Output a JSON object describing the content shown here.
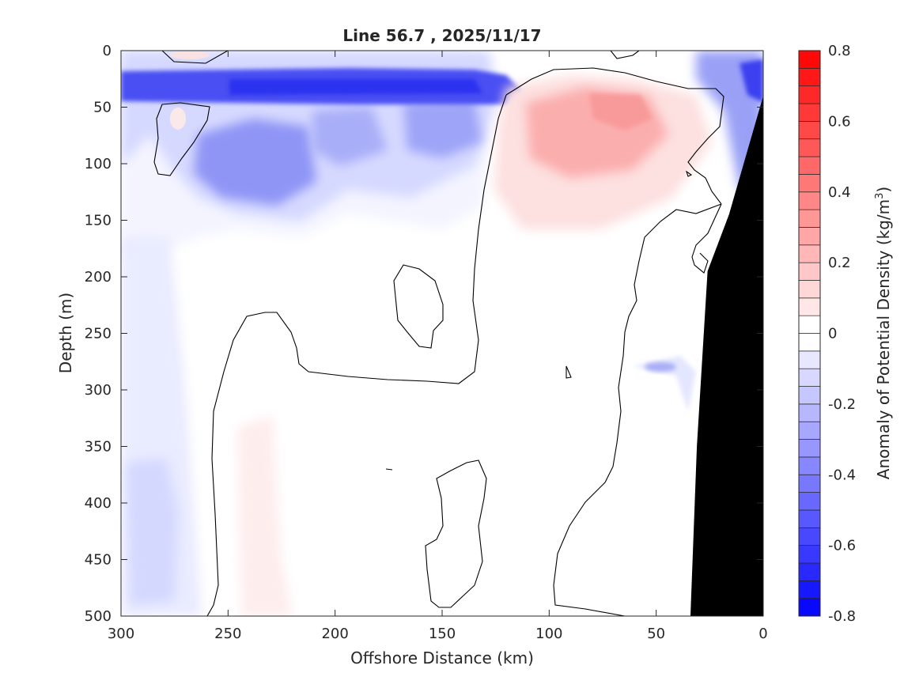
{
  "chart_data": {
    "type": "heatmap",
    "title": "Line 56.7 , 2025/11/17",
    "xlabel": "Offshore Distance (km)",
    "ylabel": "Depth (m)",
    "xlim": [
      300,
      0
    ],
    "ylim": [
      0,
      500
    ],
    "x_direction": "reversed",
    "y_direction": "reversed",
    "x_ticks": [
      300,
      250,
      200,
      150,
      100,
      50,
      0
    ],
    "y_ticks": [
      0,
      50,
      100,
      150,
      200,
      250,
      300,
      350,
      400,
      450,
      500
    ],
    "colorbar": {
      "label_prefix": "Anomaly of Potential Density (kg/m",
      "label_sup": "3",
      "label_suffix": ")",
      "range": [
        -0.8,
        0.8
      ],
      "step": 0.05,
      "ticks": [
        0.8,
        0.6,
        0.4,
        0.2,
        0,
        -0.2,
        -0.4,
        -0.6,
        -0.8
      ],
      "tick_labels": [
        "0.8",
        "0.6",
        "0.4",
        "0.2",
        "0",
        "-0.2",
        "-0.4",
        "-0.6",
        "-0.8"
      ],
      "colormap": "blue-white-red",
      "low_color": "#0000ff",
      "mid_color": "#ffffff",
      "high_color": "#ff0000"
    },
    "anomaly_features": [
      {
        "kind": "negative",
        "x": [
          300,
          0
        ],
        "depth": [
          20,
          50
        ],
        "peak": -0.55
      },
      {
        "kind": "negative",
        "x": [
          260,
          200
        ],
        "depth": [
          60,
          160
        ],
        "peak": -0.35
      },
      {
        "kind": "negative",
        "x": [
          200,
          130
        ],
        "depth": [
          40,
          130
        ],
        "peak": -0.25
      },
      {
        "kind": "negative",
        "x": [
          15,
          0
        ],
        "depth": [
          0,
          120
        ],
        "peak": -0.45
      },
      {
        "kind": "positive",
        "x": [
          120,
          40
        ],
        "depth": [
          35,
          160
        ],
        "peak": 0.25
      },
      {
        "kind": "negative",
        "x": [
          300,
          250
        ],
        "depth": [
          340,
          500
        ],
        "peak": -0.12
      },
      {
        "kind": "positive",
        "x": [
          245,
          215
        ],
        "depth": [
          310,
          500
        ],
        "peak": 0.04
      },
      {
        "kind": "negative",
        "x": [
          60,
          40
        ],
        "depth": [
          270,
          290
        ],
        "peak": -0.2
      }
    ],
    "zero_contour": true,
    "bathymetry": {
      "color": "#000000",
      "offshore_km": [
        34,
        31,
        26,
        16,
        0
      ],
      "depth_m": [
        500,
        350,
        195,
        145,
        40
      ]
    }
  }
}
